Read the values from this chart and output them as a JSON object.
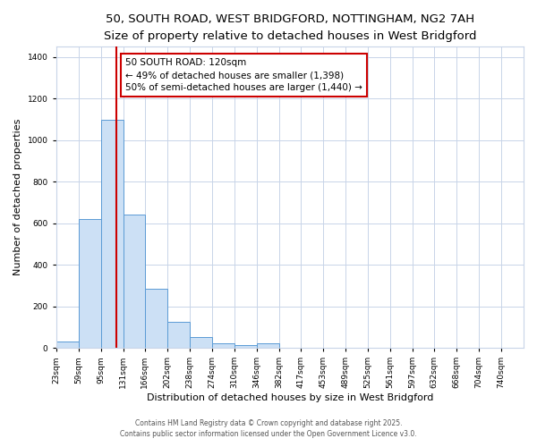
{
  "title1": "50, SOUTH ROAD, WEST BRIDGFORD, NOTTINGHAM, NG2 7AH",
  "title2": "Size of property relative to detached houses in West Bridgford",
  "xlabel": "Distribution of detached houses by size in West Bridgford",
  "ylabel": "Number of detached properties",
  "bar_left_edges": [
    23,
    59,
    95,
    131,
    166,
    202,
    238,
    274,
    310,
    346,
    382,
    417,
    453,
    489,
    525,
    561,
    597,
    632,
    668,
    704
  ],
  "bar_heights": [
    30,
    620,
    1100,
    640,
    285,
    125,
    50,
    20,
    15,
    20,
    0,
    0,
    0,
    0,
    0,
    0,
    0,
    0,
    0,
    0
  ],
  "bin_width": 36,
  "bar_color": "#cce0f5",
  "bar_edge_color": "#5b9bd5",
  "vline_x": 120,
  "vline_color": "#cc0000",
  "annotation_title": "50 SOUTH ROAD: 120sqm",
  "annotation_line1": "← 49% of detached houses are smaller (1,398)",
  "annotation_line2": "50% of semi-detached houses are larger (1,440) →",
  "annotation_box_color": "#cc0000",
  "annotation_box_fill": "#ffffff",
  "ylim": [
    0,
    1450
  ],
  "yticks": [
    0,
    200,
    400,
    600,
    800,
    1000,
    1200,
    1400
  ],
  "xtick_labels": [
    "23sqm",
    "59sqm",
    "95sqm",
    "131sqm",
    "166sqm",
    "202sqm",
    "238sqm",
    "274sqm",
    "310sqm",
    "346sqm",
    "382sqm",
    "417sqm",
    "453sqm",
    "489sqm",
    "525sqm",
    "561sqm",
    "597sqm",
    "632sqm",
    "668sqm",
    "704sqm",
    "740sqm"
  ],
  "xtick_positions": [
    23,
    59,
    95,
    131,
    166,
    202,
    238,
    274,
    310,
    346,
    382,
    417,
    453,
    489,
    525,
    561,
    597,
    632,
    668,
    704,
    740
  ],
  "bg_color": "#ffffff",
  "grid_color": "#c8d4e8",
  "footer1": "Contains HM Land Registry data © Crown copyright and database right 2025.",
  "footer2": "Contains public sector information licensed under the Open Government Licence v3.0.",
  "title1_fontsize": 9.5,
  "title2_fontsize": 8.5,
  "annotation_fontsize": 7.5,
  "axis_label_fontsize": 8,
  "tick_fontsize": 6.5,
  "footer_fontsize": 5.5
}
